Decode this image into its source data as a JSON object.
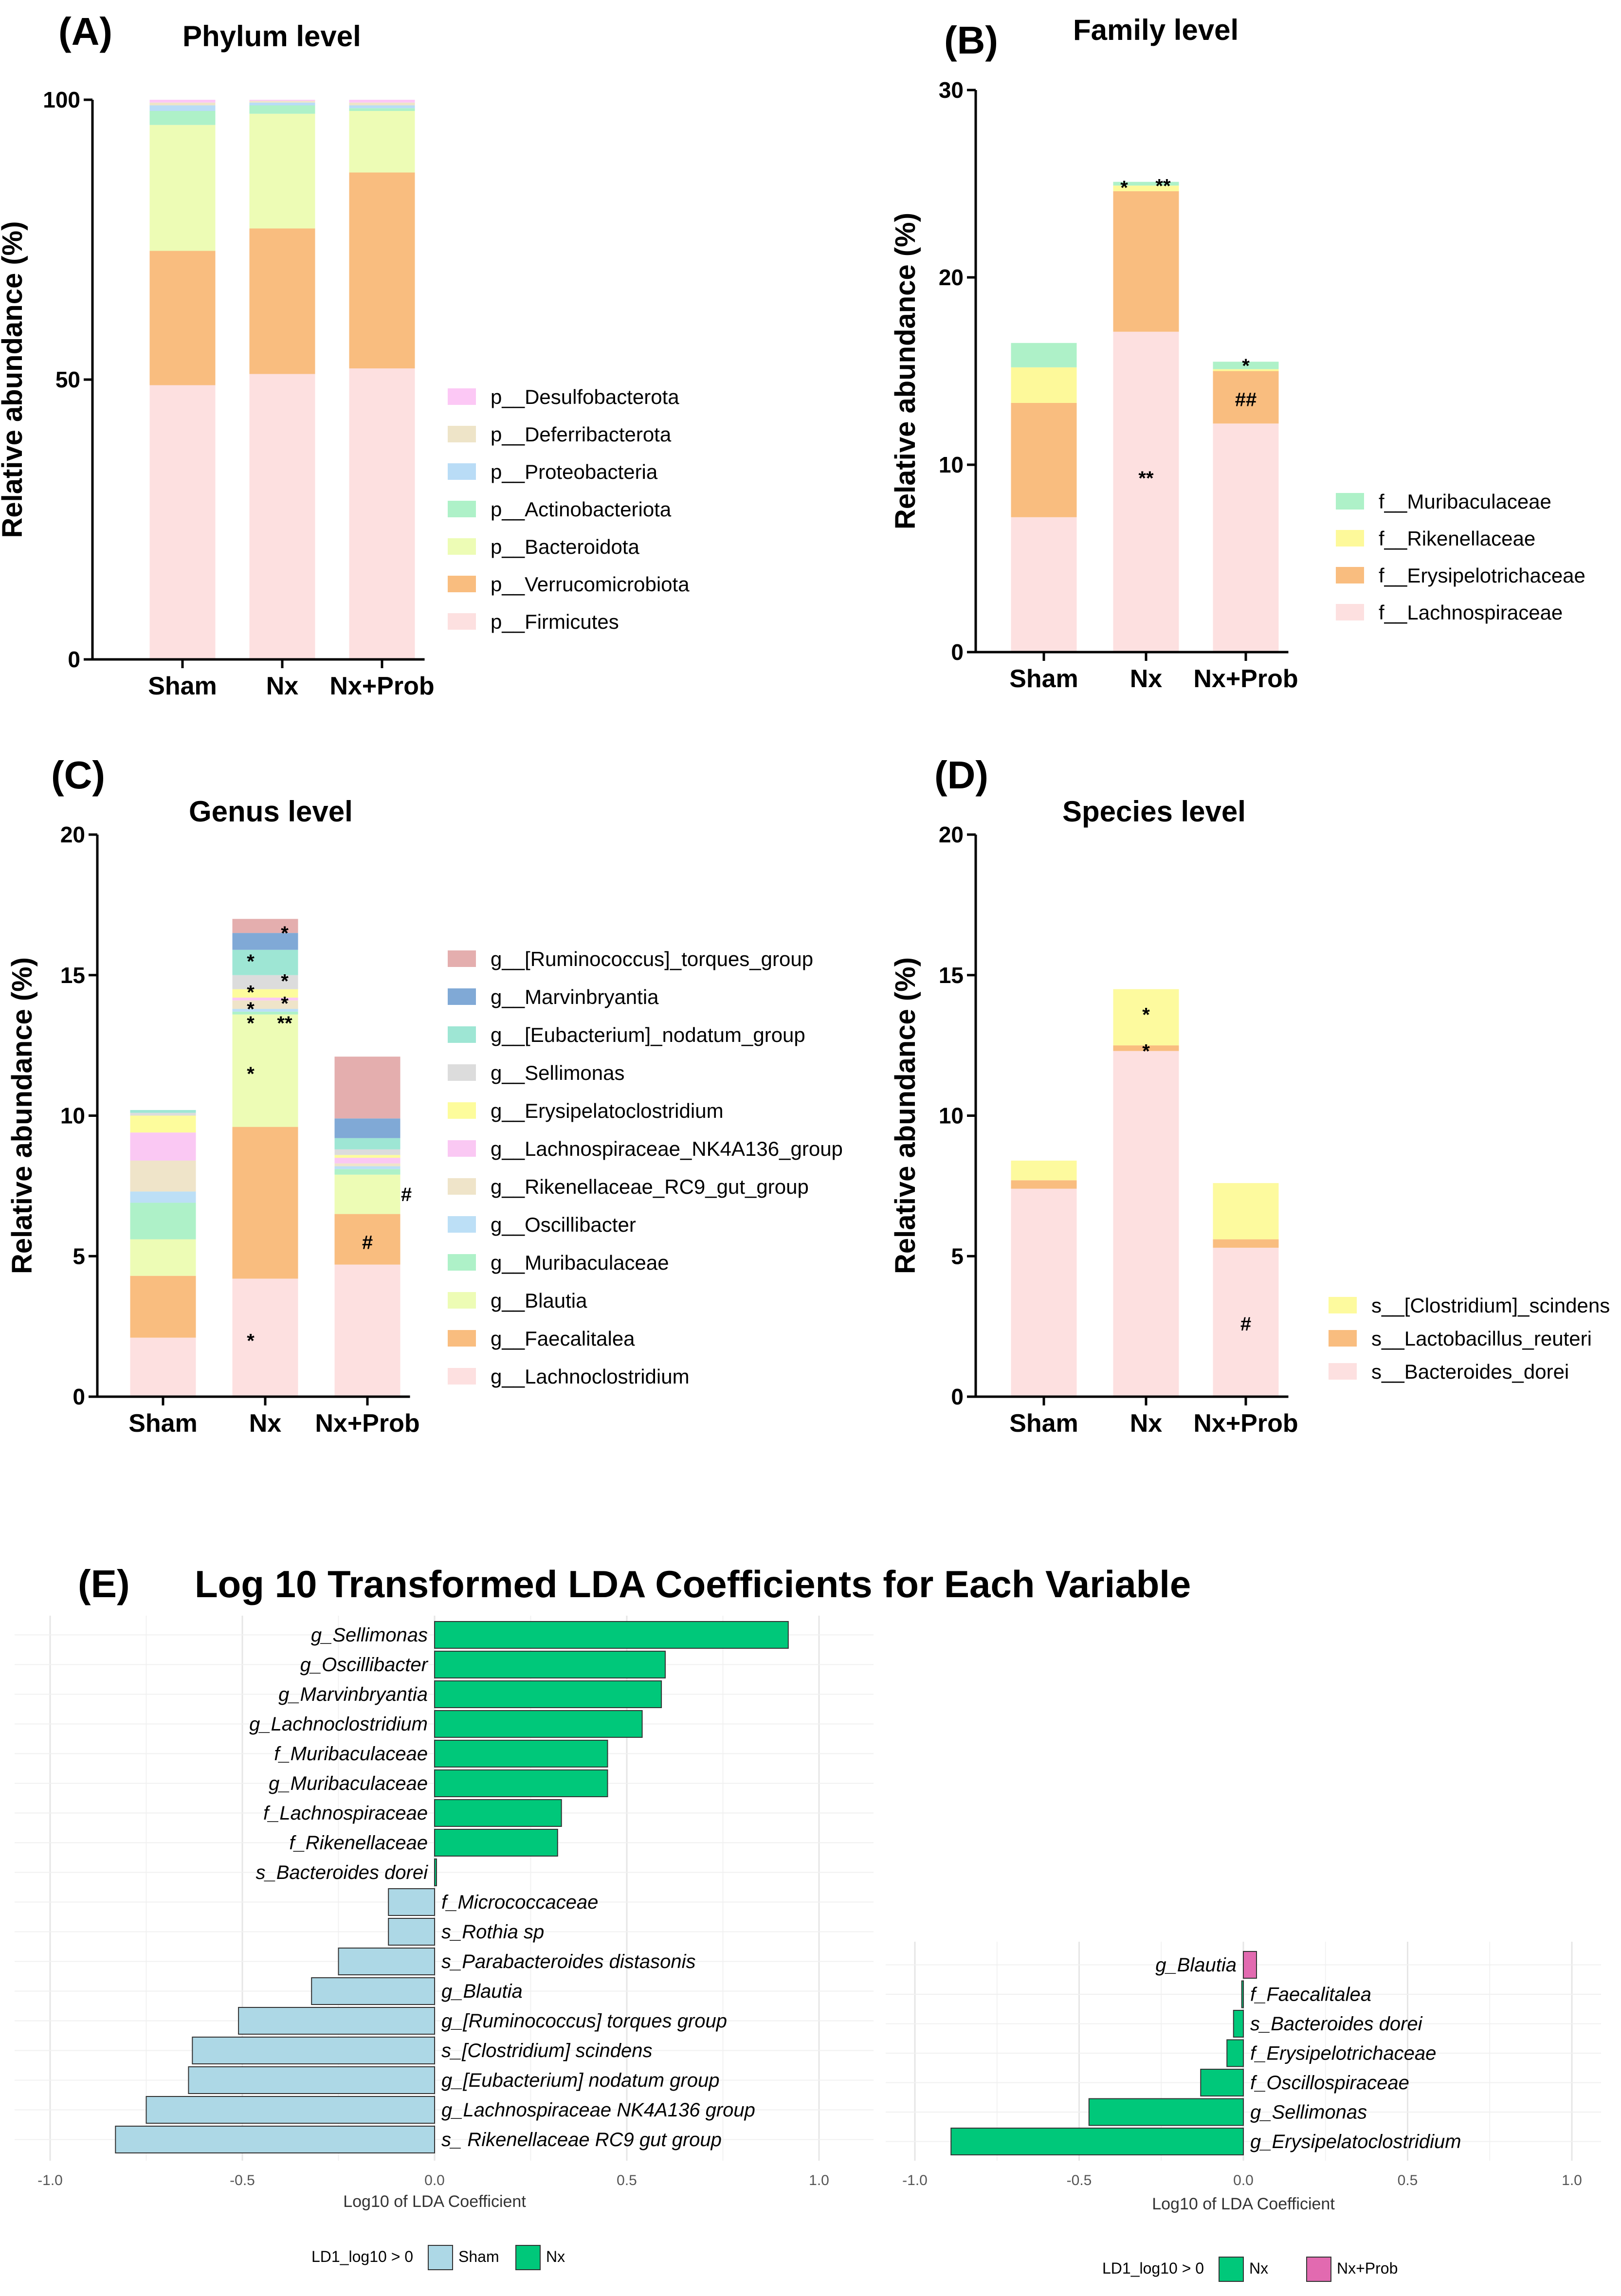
{
  "panels": {
    "A": {
      "label": "(A)",
      "title": "Phylum level"
    },
    "B": {
      "label": "(B)",
      "title": "Family level"
    },
    "C": {
      "label": "(C)",
      "title": "Genus level"
    },
    "D": {
      "label": "(D)",
      "title": "Species level"
    },
    "E": {
      "label": "(E)",
      "title": "Log 10 Transformed LDA Coefficients for Each Variable"
    }
  },
  "colors": {
    "Firmicutes": "#fde0e0",
    "Verrucomicrobiota": "#f9bd7f",
    "Bacteroidota": "#edfcb5",
    "Actinobacteriota": "#aef1c8",
    "Proteobacteria": "#b9dcf6",
    "Deferribacterota": "#eee4c8",
    "Desulfobacterota": "#fcc8f5",
    "Lachnospiraceae": "#fde0e0",
    "Erysipelotrichaceae": "#f9bd7f",
    "Rikenellaceae": "#fdf99a",
    "Muribaculaceae": "#aef1c8",
    "ruminococcus": "#e4aeae",
    "marvin": "#80a9d6",
    "eubacterium": "#9ee6d4",
    "sellimonas": "#dcdcdc",
    "erysipelato": "#fdfc9c",
    "lachnoNK": "#fac8f3",
    "rikenRC9": "#efe4c9",
    "oscilli": "#bcdff6",
    "muribac": "#aef1c8",
    "blautia": "#edfcb5",
    "faecal": "#f9bd7f",
    "lachnoclos": "#fde0e0",
    "scindens": "#fdfa9e",
    "reuteri": "#f9bd7f",
    "dorei": "#fde0e0",
    "Sham": "#add8e6",
    "Nx": "#00c87a",
    "NxProb": "#e26ab0"
  },
  "chart_data": [
    {
      "id": "A",
      "type": "bar",
      "stacked": true,
      "title": "Phylum level",
      "ylabel": "Relative abundance (%)",
      "ylim": [
        0,
        100
      ],
      "yticks": [
        "0",
        "50",
        "100"
      ],
      "categories": [
        "Sham",
        "Nx",
        "Nx+Prob"
      ],
      "series": [
        {
          "name": "p__Firmicutes",
          "color_key": "Firmicutes",
          "values": [
            49,
            51,
            52
          ]
        },
        {
          "name": "p__Verrucomicrobiota",
          "color_key": "Verrucomicrobiota",
          "values": [
            24,
            26,
            35
          ]
        },
        {
          "name": "p__Bacteroidota",
          "color_key": "Bacteroidota",
          "values": [
            22.5,
            20.5,
            11
          ]
        },
        {
          "name": "p__Actinobacteriota",
          "color_key": "Actinobacteriota",
          "values": [
            2.5,
            1.5,
            0.5
          ]
        },
        {
          "name": "p__Proteobacteria",
          "color_key": "Proteobacteria",
          "values": [
            1,
            0.5,
            0.5
          ]
        },
        {
          "name": "p__Deferribacterota",
          "color_key": "Deferribacterota",
          "values": [
            0.5,
            0.3,
            0.5
          ]
        },
        {
          "name": "p__Desulfobacterota",
          "color_key": "Desulfobacterota",
          "values": [
            0.5,
            0.2,
            0.5
          ]
        }
      ],
      "annotations": []
    },
    {
      "id": "B",
      "type": "bar",
      "stacked": true,
      "title": "Family level",
      "ylabel": "Relative abundance (%)",
      "ylim": [
        0,
        30
      ],
      "yticks": [
        "0",
        "10",
        "20",
        "30"
      ],
      "categories": [
        "Sham",
        "Nx",
        "Nx+Prob"
      ],
      "series": [
        {
          "name": "f__Lachnospiraceae",
          "color_key": "Lachnospiraceae",
          "values": [
            7.2,
            17.1,
            12.2
          ]
        },
        {
          "name": "f__Erysipelotrichaceae",
          "color_key": "Erysipelotrichaceae",
          "values": [
            6.1,
            7.5,
            2.8
          ]
        },
        {
          "name": "f__Rikenellaceae",
          "color_key": "Rikenellaceae",
          "values": [
            1.9,
            0.3,
            0.1
          ]
        },
        {
          "name": "f__Muribaculaceae",
          "color_key": "Muribaculaceae",
          "values": [
            1.3,
            0.2,
            0.4
          ]
        }
      ],
      "annotations": [
        {
          "cat": 1,
          "y": 9.3,
          "text": "**",
          "dx": 0
        },
        {
          "cat": 1,
          "y": 24.8,
          "text": "*",
          "dx": -45
        },
        {
          "cat": 1,
          "y": 24.9,
          "text": "**",
          "dx": 35
        },
        {
          "cat": 2,
          "y": 13.5,
          "text": "##",
          "dx": 0
        },
        {
          "cat": 2,
          "y": 15.3,
          "text": "*",
          "dx": 0
        }
      ]
    },
    {
      "id": "C",
      "type": "bar",
      "stacked": true,
      "title": "Genus level",
      "ylabel": "Relative abundance (%)",
      "ylim": [
        0,
        20
      ],
      "yticks": [
        "0",
        "5",
        "10",
        "15",
        "20"
      ],
      "categories": [
        "Sham",
        "Nx",
        "Nx+Prob"
      ],
      "series": [
        {
          "name": "g__Lachnoclostridium",
          "color_key": "lachnoclos",
          "values": [
            2.1,
            4.2,
            4.7
          ]
        },
        {
          "name": "g__Faecalitalea",
          "color_key": "faecal",
          "values": [
            2.2,
            5.4,
            1.8
          ]
        },
        {
          "name": "g__Blautia",
          "color_key": "blautia",
          "values": [
            1.3,
            4.0,
            1.4
          ]
        },
        {
          "name": "g__Muribaculaceae",
          "color_key": "muribac",
          "values": [
            1.3,
            0.1,
            0.2
          ]
        },
        {
          "name": "g__Oscillibacter",
          "color_key": "oscilli",
          "values": [
            0.4,
            0.1,
            0.1
          ]
        },
        {
          "name": "g__Rikenellaceae_RC9_gut_group",
          "color_key": "rikenRC9",
          "values": [
            1.1,
            0.3,
            0.1
          ]
        },
        {
          "name": "g__Lachnospiraceae_NK4A136_group",
          "color_key": "lachnoNK",
          "values": [
            1.0,
            0.1,
            0.2
          ]
        },
        {
          "name": "g__Erysipelatoclostridium",
          "color_key": "erysipelato",
          "values": [
            0.6,
            0.3,
            0.1
          ]
        },
        {
          "name": "g__Sellimonas",
          "color_key": "sellimonas",
          "values": [
            0.1,
            0.5,
            0.2
          ]
        },
        {
          "name": "g__[Eubacterium]_nodatum_group",
          "color_key": "eubacterium",
          "values": [
            0.1,
            0.9,
            0.4
          ]
        },
        {
          "name": "g__Marvinbryantia",
          "color_key": "marvin",
          "values": [
            0.0,
            0.6,
            0.7
          ]
        },
        {
          "name": "g__[Ruminococcus]_torques_group",
          "color_key": "ruminococcus",
          "values": [
            0.0,
            0.5,
            2.2
          ]
        }
      ],
      "annotations": [
        {
          "cat": 1,
          "y": 2.0,
          "text": "*",
          "dx": -30
        },
        {
          "cat": 1,
          "y": 11.5,
          "text": "*",
          "dx": -30
        },
        {
          "cat": 1,
          "y": 13.3,
          "text": "*",
          "dx": -30
        },
        {
          "cat": 1,
          "y": 13.3,
          "text": "**",
          "dx": 40
        },
        {
          "cat": 1,
          "y": 13.8,
          "text": "*",
          "dx": -30
        },
        {
          "cat": 1,
          "y": 14.0,
          "text": "*",
          "dx": 40
        },
        {
          "cat": 1,
          "y": 14.4,
          "text": "*",
          "dx": -30
        },
        {
          "cat": 1,
          "y": 14.8,
          "text": "*",
          "dx": 40
        },
        {
          "cat": 1,
          "y": 15.5,
          "text": "*",
          "dx": -30
        },
        {
          "cat": 1,
          "y": 16.5,
          "text": "*",
          "dx": 40
        },
        {
          "cat": 2,
          "y": 5.5,
          "text": "#",
          "dx": 0
        },
        {
          "cat": 2,
          "y": 7.2,
          "text": "#",
          "dx": 80
        }
      ]
    },
    {
      "id": "D",
      "type": "bar",
      "stacked": true,
      "title": "Species level",
      "ylabel": "Relative abundance (%)",
      "ylim": [
        0,
        20
      ],
      "yticks": [
        "0",
        "5",
        "10",
        "15",
        "20"
      ],
      "categories": [
        "Sham",
        "Nx",
        "Nx+Prob"
      ],
      "series": [
        {
          "name": "s__Bacteroides_dorei",
          "color_key": "dorei",
          "values": [
            7.4,
            12.3,
            5.3
          ]
        },
        {
          "name": "s__Lactobacillus_reuteri",
          "color_key": "reuteri",
          "values": [
            0.3,
            0.2,
            0.3
          ]
        },
        {
          "name": "s__[Clostridium]_scindens",
          "color_key": "scindens",
          "values": [
            0.7,
            2.0,
            2.0
          ]
        }
      ],
      "annotations": [
        {
          "cat": 1,
          "y": 12.3,
          "text": "*",
          "dx": 0
        },
        {
          "cat": 1,
          "y": 13.6,
          "text": "*",
          "dx": 0
        },
        {
          "cat": 2,
          "y": 2.6,
          "text": "#",
          "dx": 0
        }
      ]
    },
    {
      "id": "E1",
      "type": "bar",
      "orientation": "horizontal",
      "xlabel": "Log10 of LDA Coefficient",
      "xlim": [
        -1.0,
        1.0
      ],
      "xticks": [
        "-1.0",
        "-0.5",
        "0.0",
        "0.5",
        "1.0"
      ],
      "legend": {
        "title": "LD1_log10 > 0",
        "items": [
          "Sham",
          "Nx"
        ]
      },
      "bars": [
        {
          "label": "g_Sellimonas",
          "value": 0.92,
          "group": "Nx"
        },
        {
          "label": "g_Oscillibacter",
          "value": 0.6,
          "group": "Nx"
        },
        {
          "label": "g_Marvinbryantia",
          "value": 0.59,
          "group": "Nx"
        },
        {
          "label": "g_Lachnoclostridium",
          "value": 0.54,
          "group": "Nx"
        },
        {
          "label": "f_Muribaculaceae",
          "value": 0.45,
          "group": "Nx"
        },
        {
          "label": "g_Muribaculaceae",
          "value": 0.45,
          "group": "Nx"
        },
        {
          "label": "f_Lachnospiraceae",
          "value": 0.33,
          "group": "Nx"
        },
        {
          "label": "f_Rikenellaceae",
          "value": 0.32,
          "group": "Nx"
        },
        {
          "label": "s_Bacteroides dorei",
          "value": 0.005,
          "group": "Nx"
        },
        {
          "label": "f_Micrococcaceae",
          "value": -0.12,
          "group": "Sham"
        },
        {
          "label": "s_Rothia sp",
          "value": -0.12,
          "group": "Sham"
        },
        {
          "label": "s_Parabacteroides distasonis",
          "value": -0.25,
          "group": "Sham"
        },
        {
          "label": "g_Blautia",
          "value": -0.32,
          "group": "Sham"
        },
        {
          "label": "g_[Ruminococcus] torques group",
          "value": -0.51,
          "group": "Sham"
        },
        {
          "label": "s_[Clostridium] scindens",
          "value": -0.63,
          "group": "Sham"
        },
        {
          "label": "g_[Eubacterium] nodatum group",
          "value": -0.64,
          "group": "Sham"
        },
        {
          "label": "g_Lachnospiraceae NK4A136 group",
          "value": -0.75,
          "group": "Sham"
        },
        {
          "label": "s_ Rikenellaceae RC9 gut group",
          "value": -0.83,
          "group": "Sham"
        }
      ]
    },
    {
      "id": "E2",
      "type": "bar",
      "orientation": "horizontal",
      "xlabel": "Log10 of LDA Coefficient",
      "xlim": [
        -1.0,
        1.0
      ],
      "xticks": [
        "-1.0",
        "-0.5",
        "0.0",
        "0.5",
        "1.0"
      ],
      "legend": {
        "title": "LD1_log10 > 0",
        "items": [
          "Nx",
          "Nx+Prob"
        ]
      },
      "bars": [
        {
          "label": "g_Blautia",
          "value": 0.04,
          "group": "Nx+Prob"
        },
        {
          "label": "f_Faecalitalea",
          "value": -0.005,
          "group": "Nx"
        },
        {
          "label": "s_Bacteroides dorei",
          "value": -0.03,
          "group": "Nx"
        },
        {
          "label": "f_Erysipelotrichaceae",
          "value": -0.05,
          "group": "Nx"
        },
        {
          "label": "f_Oscillospiraceae",
          "value": -0.13,
          "group": "Nx"
        },
        {
          "label": "g_Sellimonas",
          "value": -0.47,
          "group": "Nx"
        },
        {
          "label": "g_Erysipelatoclostridium",
          "value": -0.89,
          "group": "Nx"
        }
      ]
    }
  ]
}
